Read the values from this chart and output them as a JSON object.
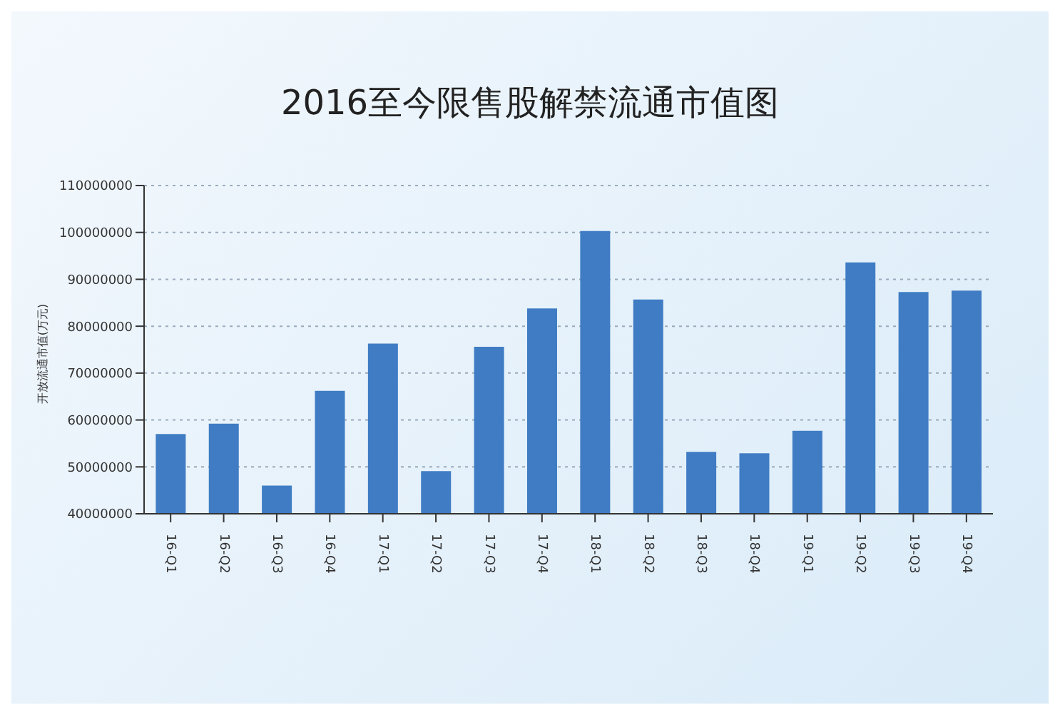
{
  "chart_data": {
    "type": "bar",
    "title": "2016至今限售股解禁流通市值图",
    "ylabel": "开放流通市值(万元)",
    "categories": [
      "16-Q1",
      "16-Q2",
      "16-Q3",
      "16-Q4",
      "17-Q1",
      "17-Q2",
      "17-Q3",
      "17-Q4",
      "18-Q1",
      "18-Q2",
      "18-Q3",
      "18-Q4",
      "19-Q1",
      "19-Q2",
      "19-Q3",
      "19-Q4"
    ],
    "values": [
      57000000,
      59200000,
      46000000,
      66200000,
      76300000,
      49100000,
      75600000,
      83800000,
      100300000,
      85700000,
      53200000,
      52900000,
      57700000,
      93600000,
      87300000,
      87600000
    ],
    "color": "#3f7cc4",
    "ylim": [
      40000000,
      110000000
    ],
    "yticks": [
      40000000,
      50000000,
      60000000,
      70000000,
      80000000,
      90000000,
      100000000,
      110000000
    ],
    "grid": "y"
  }
}
